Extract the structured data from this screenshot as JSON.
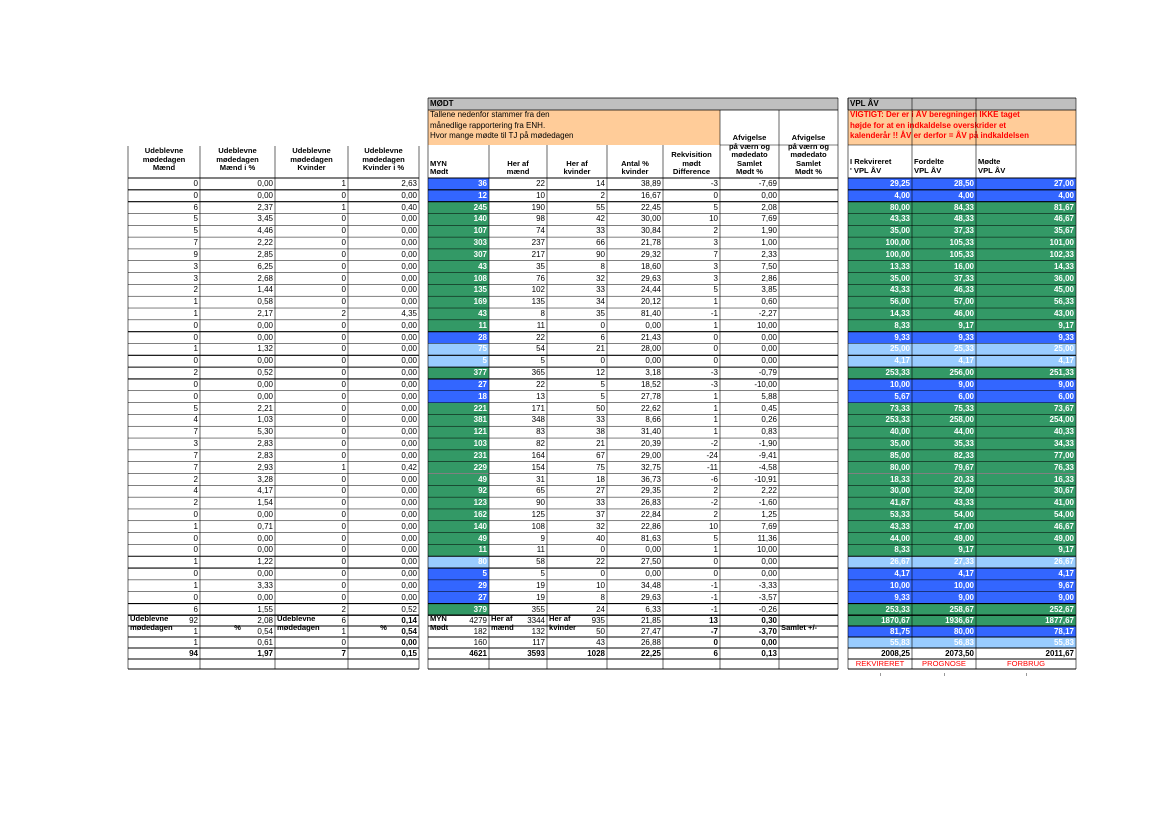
{
  "colors": {
    "gray_header": "#bfbfbf",
    "orange_note": "#ffcc99",
    "green": "#339966",
    "blue": "#3366ff",
    "light_blue": "#99ccff",
    "red_text": "#ff0000",
    "gridline": "#000000"
  },
  "moedt_title": "MØDT",
  "moedt_note": [
    "Tallene nedenfor stammer fra den",
    "månedlige rapportering fra ENH.",
    "Hvor mange mødte til TJ på mødedagen"
  ],
  "vpl_title": "VPL ÅV",
  "vpl_note": [
    "VIGTIGT: Der er i ÅV beregningen IKKE taget",
    "højde for at en indkaldelse overskrider et",
    "kalenderår !! ÅV er derfor = ÅV på indkaldelsen"
  ],
  "left_headers": [
    [
      "Udeblevne",
      "mødedagen",
      "Mænd"
    ],
    [
      "Udeblevne",
      "mødedagen",
      "Mænd i %"
    ],
    [
      "Udeblevne",
      "mødedagen",
      "Kvinder"
    ],
    [
      "Udeblevne",
      "mødedagen",
      "Kvinder i %"
    ]
  ],
  "moedt_headers": [
    [
      "MYN",
      "Mødt"
    ],
    [
      "Her af",
      "mænd"
    ],
    [
      "Her af",
      "kvinder"
    ],
    [
      "Antal %",
      "kvinder"
    ],
    [
      "Rekvisition",
      "mødt",
      "Difference"
    ],
    [
      "Afvigelse",
      "på værn og",
      "mødedato",
      "Samlet",
      "Mødt %"
    ],
    [
      "Afvigelse",
      "på værn og",
      "mødedato",
      "Samlet",
      "Mødt %"
    ]
  ],
  "vpl_headers": [
    [
      "I Rekvireret",
      "' VPL ÅV"
    ],
    [
      "Fordelte",
      "VPL ÅV"
    ],
    [
      "Mødte",
      "VPL ÅV"
    ]
  ],
  "rows": [
    {
      "udm": "0",
      "udmp": "0,00",
      "udk": "1",
      "udkp": "2,63",
      "myn": "36",
      "mand": "22",
      "kvin": "14",
      "ant": "38,89",
      "diff": "-3",
      "afv": "-7,69",
      "rek": "29,25",
      "ford": "28,50",
      "modte": "27,00",
      "fill": "blue",
      "vfill": "blue"
    },
    {
      "udm": "0",
      "udmp": "0,00",
      "udk": "0",
      "udkp": "0,00",
      "myn": "12",
      "mand": "10",
      "kvin": "2",
      "ant": "16,67",
      "diff": "0",
      "afv": "0,00",
      "rek": "4,00",
      "ford": "4,00",
      "modte": "4,00",
      "fill": "blue",
      "vfill": "blue"
    },
    {
      "udm": "6",
      "udmp": "2,37",
      "udk": "1",
      "udkp": "0,40",
      "myn": "245",
      "mand": "190",
      "kvin": "55",
      "ant": "22,45",
      "diff": "5",
      "afv": "2,08",
      "rek": "80,00",
      "ford": "84,33",
      "modte": "81,67",
      "fill": "green",
      "vfill": "green"
    },
    {
      "udm": "5",
      "udmp": "3,45",
      "udk": "0",
      "udkp": "0,00",
      "myn": "140",
      "mand": "98",
      "kvin": "42",
      "ant": "30,00",
      "diff": "10",
      "afv": "7,69",
      "rek": "43,33",
      "ford": "48,33",
      "modte": "46,67",
      "fill": "green",
      "vfill": "green"
    },
    {
      "udm": "5",
      "udmp": "4,46",
      "udk": "0",
      "udkp": "0,00",
      "myn": "107",
      "mand": "74",
      "kvin": "33",
      "ant": "30,84",
      "diff": "2",
      "afv": "1,90",
      "rek": "35,00",
      "ford": "37,33",
      "modte": "35,67",
      "fill": "green",
      "vfill": "green"
    },
    {
      "udm": "7",
      "udmp": "2,22",
      "udk": "0",
      "udkp": "0,00",
      "myn": "303",
      "mand": "237",
      "kvin": "66",
      "ant": "21,78",
      "diff": "3",
      "afv": "1,00",
      "rek": "100,00",
      "ford": "105,33",
      "modte": "101,00",
      "fill": "green",
      "vfill": "green"
    },
    {
      "udm": "9",
      "udmp": "2,85",
      "udk": "0",
      "udkp": "0,00",
      "myn": "307",
      "mand": "217",
      "kvin": "90",
      "ant": "29,32",
      "diff": "7",
      "afv": "2,33",
      "rek": "100,00",
      "ford": "105,33",
      "modte": "102,33",
      "fill": "green",
      "vfill": "green"
    },
    {
      "udm": "3",
      "udmp": "6,25",
      "udk": "0",
      "udkp": "0,00",
      "myn": "43",
      "mand": "35",
      "kvin": "8",
      "ant": "18,60",
      "diff": "3",
      "afv": "7,50",
      "rek": "13,33",
      "ford": "16,00",
      "modte": "14,33",
      "fill": "green",
      "vfill": "green"
    },
    {
      "udm": "3",
      "udmp": "2,68",
      "udk": "0",
      "udkp": "0,00",
      "myn": "108",
      "mand": "76",
      "kvin": "32",
      "ant": "29,63",
      "diff": "3",
      "afv": "2,86",
      "rek": "35,00",
      "ford": "37,33",
      "modte": "36,00",
      "fill": "green",
      "vfill": "green"
    },
    {
      "udm": "2",
      "udmp": "1,44",
      "udk": "0",
      "udkp": "0,00",
      "myn": "135",
      "mand": "102",
      "kvin": "33",
      "ant": "24,44",
      "diff": "5",
      "afv": "3,85",
      "rek": "43,33",
      "ford": "46,33",
      "modte": "45,00",
      "fill": "green",
      "vfill": "green"
    },
    {
      "udm": "1",
      "udmp": "0,58",
      "udk": "0",
      "udkp": "0,00",
      "myn": "169",
      "mand": "135",
      "kvin": "34",
      "ant": "20,12",
      "diff": "1",
      "afv": "0,60",
      "rek": "56,00",
      "ford": "57,00",
      "modte": "56,33",
      "fill": "green",
      "vfill": "green"
    },
    {
      "udm": "1",
      "udmp": "2,17",
      "udk": "2",
      "udkp": "4,35",
      "myn": "43",
      "mand": "8",
      "kvin": "35",
      "ant": "81,40",
      "diff": "-1",
      "afv": "-2,27",
      "rek": "14,33",
      "ford": "46,00",
      "modte": "43,00",
      "fill": "green",
      "vfill": "green"
    },
    {
      "udm": "0",
      "udmp": "0,00",
      "udk": "0",
      "udkp": "0,00",
      "myn": "11",
      "mand": "11",
      "kvin": "0",
      "ant": "0,00",
      "diff": "1",
      "afv": "10,00",
      "rek": "8,33",
      "ford": "9,17",
      "modte": "9,17",
      "fill": "green",
      "vfill": "green"
    },
    {
      "udm": "0",
      "udmp": "0,00",
      "udk": "0",
      "udkp": "0,00",
      "myn": "28",
      "mand": "22",
      "kvin": "6",
      "ant": "21,43",
      "diff": "0",
      "afv": "0,00",
      "rek": "9,33",
      "ford": "9,33",
      "modte": "9,33",
      "fill": "blue",
      "vfill": "blue"
    },
    {
      "udm": "1",
      "udmp": "1,32",
      "udk": "0",
      "udkp": "0,00",
      "myn": "75",
      "mand": "54",
      "kvin": "21",
      "ant": "28,00",
      "diff": "0",
      "afv": "0,00",
      "rek": "25,00",
      "ford": "25,33",
      "modte": "25,00",
      "fill": "light",
      "vfill": "light"
    },
    {
      "udm": "0",
      "udmp": "0,00",
      "udk": "0",
      "udkp": "0,00",
      "myn": "5",
      "mand": "5",
      "kvin": "0",
      "ant": "0,00",
      "diff": "0",
      "afv": "0,00",
      "rek": "4,17",
      "ford": "4,17",
      "modte": "4,17",
      "fill": "light",
      "vfill": "light"
    },
    {
      "udm": "2",
      "udmp": "0,52",
      "udk": "0",
      "udkp": "0,00",
      "myn": "377",
      "mand": "365",
      "kvin": "12",
      "ant": "3,18",
      "diff": "-3",
      "afv": "-0,79",
      "rek": "253,33",
      "ford": "256,00",
      "modte": "251,33",
      "fill": "green",
      "vfill": "green"
    },
    {
      "udm": "0",
      "udmp": "0,00",
      "udk": "0",
      "udkp": "0,00",
      "myn": "27",
      "mand": "22",
      "kvin": "5",
      "ant": "18,52",
      "diff": "-3",
      "afv": "-10,00",
      "rek": "10,00",
      "ford": "9,00",
      "modte": "9,00",
      "fill": "blue",
      "vfill": "blue"
    },
    {
      "udm": "0",
      "udmp": "0,00",
      "udk": "0",
      "udkp": "0,00",
      "myn": "18",
      "mand": "13",
      "kvin": "5",
      "ant": "27,78",
      "diff": "1",
      "afv": "5,88",
      "rek": "5,67",
      "ford": "6,00",
      "modte": "6,00",
      "fill": "blue",
      "vfill": "blue"
    },
    {
      "udm": "5",
      "udmp": "2,21",
      "udk": "0",
      "udkp": "0,00",
      "myn": "221",
      "mand": "171",
      "kvin": "50",
      "ant": "22,62",
      "diff": "1",
      "afv": "0,45",
      "rek": "73,33",
      "ford": "75,33",
      "modte": "73,67",
      "fill": "green",
      "vfill": "green"
    },
    {
      "udm": "4",
      "udmp": "1,03",
      "udk": "0",
      "udkp": "0,00",
      "myn": "381",
      "mand": "348",
      "kvin": "33",
      "ant": "8,66",
      "diff": "1",
      "afv": "0,26",
      "rek": "253,33",
      "ford": "258,00",
      "modte": "254,00",
      "fill": "green",
      "vfill": "green"
    },
    {
      "udm": "7",
      "udmp": "5,30",
      "udk": "0",
      "udkp": "0,00",
      "myn": "121",
      "mand": "83",
      "kvin": "38",
      "ant": "31,40",
      "diff": "1",
      "afv": "0,83",
      "rek": "40,00",
      "ford": "44,00",
      "modte": "40,33",
      "fill": "green",
      "vfill": "green"
    },
    {
      "udm": "3",
      "udmp": "2,83",
      "udk": "0",
      "udkp": "0,00",
      "myn": "103",
      "mand": "82",
      "kvin": "21",
      "ant": "20,39",
      "diff": "-2",
      "afv": "-1,90",
      "rek": "35,00",
      "ford": "35,33",
      "modte": "34,33",
      "fill": "green",
      "vfill": "green"
    },
    {
      "udm": "7",
      "udmp": "2,83",
      "udk": "0",
      "udkp": "0,00",
      "myn": "231",
      "mand": "164",
      "kvin": "67",
      "ant": "29,00",
      "diff": "-24",
      "afv": "-9,41",
      "rek": "85,00",
      "ford": "82,33",
      "modte": "77,00",
      "fill": "green",
      "vfill": "green"
    },
    {
      "udm": "7",
      "udmp": "2,93",
      "udk": "1",
      "udkp": "0,42",
      "myn": "229",
      "mand": "154",
      "kvin": "75",
      "ant": "32,75",
      "diff": "-11",
      "afv": "-4,58",
      "rek": "80,00",
      "ford": "79,67",
      "modte": "76,33",
      "fill": "green",
      "vfill": "green"
    },
    {
      "udm": "2",
      "udmp": "3,28",
      "udk": "0",
      "udkp": "0,00",
      "myn": "49",
      "mand": "31",
      "kvin": "18",
      "ant": "36,73",
      "diff": "-6",
      "afv": "-10,91",
      "rek": "18,33",
      "ford": "20,33",
      "modte": "16,33",
      "fill": "green",
      "vfill": "green"
    },
    {
      "udm": "4",
      "udmp": "4,17",
      "udk": "0",
      "udkp": "0,00",
      "myn": "92",
      "mand": "65",
      "kvin": "27",
      "ant": "29,35",
      "diff": "2",
      "afv": "2,22",
      "rek": "30,00",
      "ford": "32,00",
      "modte": "30,67",
      "fill": "green",
      "vfill": "green"
    },
    {
      "udm": "2",
      "udmp": "1,54",
      "udk": "0",
      "udkp": "0,00",
      "myn": "123",
      "mand": "90",
      "kvin": "33",
      "ant": "26,83",
      "diff": "-2",
      "afv": "-1,60",
      "rek": "41,67",
      "ford": "43,33",
      "modte": "41,00",
      "fill": "green",
      "vfill": "green"
    },
    {
      "udm": "0",
      "udmp": "0,00",
      "udk": "0",
      "udkp": "0,00",
      "myn": "162",
      "mand": "125",
      "kvin": "37",
      "ant": "22,84",
      "diff": "2",
      "afv": "1,25",
      "rek": "53,33",
      "ford": "54,00",
      "modte": "54,00",
      "fill": "green",
      "vfill": "green"
    },
    {
      "udm": "1",
      "udmp": "0,71",
      "udk": "0",
      "udkp": "0,00",
      "myn": "140",
      "mand": "108",
      "kvin": "32",
      "ant": "22,86",
      "diff": "10",
      "afv": "7,69",
      "rek": "43,33",
      "ford": "47,00",
      "modte": "46,67",
      "fill": "green",
      "vfill": "green"
    },
    {
      "udm": "0",
      "udmp": "0,00",
      "udk": "0",
      "udkp": "0,00",
      "myn": "49",
      "mand": "9",
      "kvin": "40",
      "ant": "81,63",
      "diff": "5",
      "afv": "11,36",
      "rek": "44,00",
      "ford": "49,00",
      "modte": "49,00",
      "fill": "green",
      "vfill": "green"
    },
    {
      "udm": "0",
      "udmp": "0,00",
      "udk": "0",
      "udkp": "0,00",
      "myn": "11",
      "mand": "11",
      "kvin": "0",
      "ant": "0,00",
      "diff": "1",
      "afv": "10,00",
      "rek": "8,33",
      "ford": "9,17",
      "modte": "9,17",
      "fill": "green",
      "vfill": "green"
    },
    {
      "udm": "1",
      "udmp": "1,22",
      "udk": "0",
      "udkp": "0,00",
      "myn": "80",
      "mand": "58",
      "kvin": "22",
      "ant": "27,50",
      "diff": "0",
      "afv": "0,00",
      "rek": "26,67",
      "ford": "27,33",
      "modte": "26,67",
      "fill": "light",
      "vfill": "light"
    },
    {
      "udm": "0",
      "udmp": "0,00",
      "udk": "0",
      "udkp": "0,00",
      "myn": "5",
      "mand": "5",
      "kvin": "0",
      "ant": "0,00",
      "diff": "0",
      "afv": "0,00",
      "rek": "4,17",
      "ford": "4,17",
      "modte": "4,17",
      "fill": "blue",
      "vfill": "blue"
    },
    {
      "udm": "1",
      "udmp": "3,33",
      "udk": "0",
      "udkp": "0,00",
      "myn": "29",
      "mand": "19",
      "kvin": "10",
      "ant": "34,48",
      "diff": "-1",
      "afv": "-3,33",
      "rek": "10,00",
      "ford": "10,00",
      "modte": "9,67",
      "fill": "blue",
      "vfill": "blue"
    },
    {
      "udm": "0",
      "udmp": "0,00",
      "udk": "0",
      "udkp": "0,00",
      "myn": "27",
      "mand": "19",
      "kvin": "8",
      "ant": "29,63",
      "diff": "-1",
      "afv": "-3,57",
      "rek": "9,33",
      "ford": "9,00",
      "modte": "9,00",
      "fill": "blue",
      "vfill": "blue"
    },
    {
      "udm": "6",
      "udmp": "1,55",
      "udk": "2",
      "udkp": "0,52",
      "myn": "379",
      "mand": "355",
      "kvin": "24",
      "ant": "6,33",
      "diff": "-1",
      "afv": "-0,26",
      "rek": "253,33",
      "ford": "258,67",
      "modte": "252,67",
      "fill": "green",
      "vfill": "green"
    }
  ],
  "summary_headers": {
    "c1": [
      "Udeblevne",
      "mødedagen"
    ],
    "c2": "%",
    "c3": [
      "Udeblevne",
      "mødedagen"
    ],
    "c4": "%",
    "c5": [
      "MYN",
      "Mødt"
    ],
    "c6": [
      "Her af",
      "mænd"
    ],
    "c7": [
      "Her af",
      "kvinder"
    ],
    "c10": "Samlet +/-"
  },
  "summary_rows": [
    {
      "udm": "92",
      "udmp": "2,08",
      "udk": "6",
      "udkp": "0,14",
      "myn": "4279",
      "mand": "3344",
      "kvin": "935",
      "ant": "21,85",
      "diff": "13",
      "afv": "0,30",
      "rek": "1870,67",
      "ford": "1936,67",
      "modte": "1877,67",
      "vfill": "green",
      "bold": false
    },
    {
      "udm": "1",
      "udmp": "0,54",
      "udk": "1",
      "udkp": "0,54",
      "myn": "182",
      "mand": "132",
      "kvin": "50",
      "ant": "27,47",
      "diff": "-7",
      "afv": "-3,70",
      "rek": "81,75",
      "ford": "80,00",
      "modte": "78,17",
      "vfill": "blue",
      "bold": false
    },
    {
      "udm": "1",
      "udmp": "0,61",
      "udk": "0",
      "udkp": "0,00",
      "myn": "160",
      "mand": "117",
      "kvin": "43",
      "ant": "26,88",
      "diff": "0",
      "afv": "0,00",
      "rek": "55,83",
      "ford": "56,83",
      "modte": "55,83",
      "vfill": "light",
      "bold": false
    },
    {
      "udm": "94",
      "udmp": "1,97",
      "udk": "7",
      "udkp": "0,15",
      "myn": "4621",
      "mand": "3593",
      "kvin": "1028",
      "ant": "22,25",
      "diff": "6",
      "afv": "0,13",
      "rek": "2008,25",
      "ford": "2073,50",
      "modte": "2011,67",
      "vfill": "none",
      "bold": true
    }
  ],
  "vpl_footer": [
    "REKVIRERET",
    "PROGNOSE",
    "FORBRUG"
  ]
}
